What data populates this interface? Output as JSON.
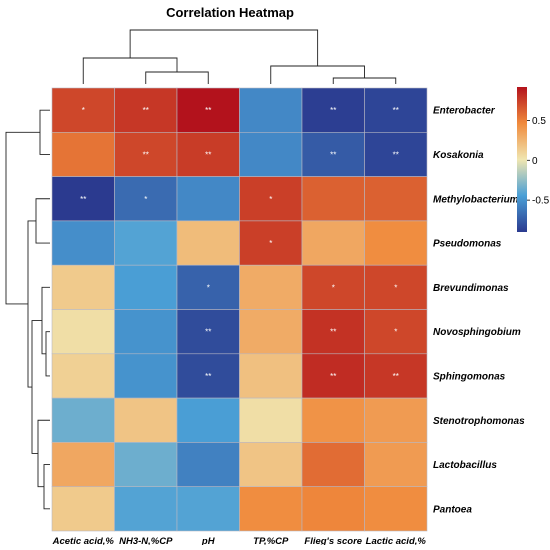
{
  "chart_data": {
    "type": "heatmap",
    "title": "Correlation Heatmap",
    "columns": [
      "Acetic acid,%",
      "NH3-N,%CP",
      "pH",
      "TP,%CP",
      "Flieg's score",
      "Lactic acid,%"
    ],
    "rows": [
      "Enterobacter",
      "Kosakonia",
      "Methylobacterium",
      "Pseudomonas",
      "Brevundimonas",
      "Novosphingobium",
      "Sphingomonas",
      "Stenotrophomonas",
      "Lactobacillus",
      "Pantoea"
    ],
    "values": [
      [
        0.72,
        0.78,
        0.92,
        -0.55,
        -0.88,
        -0.85
      ],
      [
        0.55,
        0.72,
        0.76,
        -0.55,
        -0.75,
        -0.85
      ],
      [
        -0.9,
        -0.68,
        -0.55,
        0.75,
        0.62,
        0.62
      ],
      [
        -0.52,
        -0.42,
        0.22,
        0.75,
        0.32,
        0.45
      ],
      [
        0.15,
        -0.45,
        -0.72,
        0.3,
        0.72,
        0.72
      ],
      [
        0.05,
        -0.5,
        -0.82,
        0.3,
        0.8,
        0.72
      ],
      [
        0.12,
        -0.5,
        -0.82,
        0.2,
        0.82,
        0.78
      ],
      [
        -0.35,
        0.18,
        -0.45,
        0.05,
        0.42,
        0.38
      ],
      [
        0.32,
        -0.35,
        -0.58,
        0.18,
        0.58,
        0.38
      ],
      [
        0.15,
        -0.42,
        -0.42,
        0.45,
        0.48,
        0.45
      ]
    ],
    "significance": [
      [
        "*",
        "**",
        "**",
        "",
        "**",
        "**"
      ],
      [
        "",
        "**",
        "**",
        "",
        "**",
        "**"
      ],
      [
        "**",
        "*",
        "",
        "*",
        "",
        ""
      ],
      [
        "",
        "",
        "",
        "*",
        "",
        ""
      ],
      [
        "",
        "",
        "*",
        "",
        "*",
        "*"
      ],
      [
        "",
        "",
        "**",
        "",
        "**",
        "*"
      ],
      [
        "",
        "",
        "**",
        "",
        "**",
        "**"
      ],
      [
        "",
        "",
        "",
        "",
        "",
        ""
      ],
      [
        "",
        "",
        "",
        "",
        "",
        ""
      ],
      [
        "",
        "",
        "",
        "",
        "",
        ""
      ]
    ],
    "colorbar": {
      "range": [
        -0.9,
        0.92
      ],
      "ticks": [
        0.5,
        0,
        -0.5
      ],
      "tick_labels": [
        "0.5",
        "0",
        "-0.5"
      ],
      "colors": [
        "#2b3a8f",
        "#4a9fd6",
        "#f0e6b0",
        "#f08a3c",
        "#b3121c"
      ]
    },
    "column_dendrogram": true,
    "row_dendrogram": true
  }
}
